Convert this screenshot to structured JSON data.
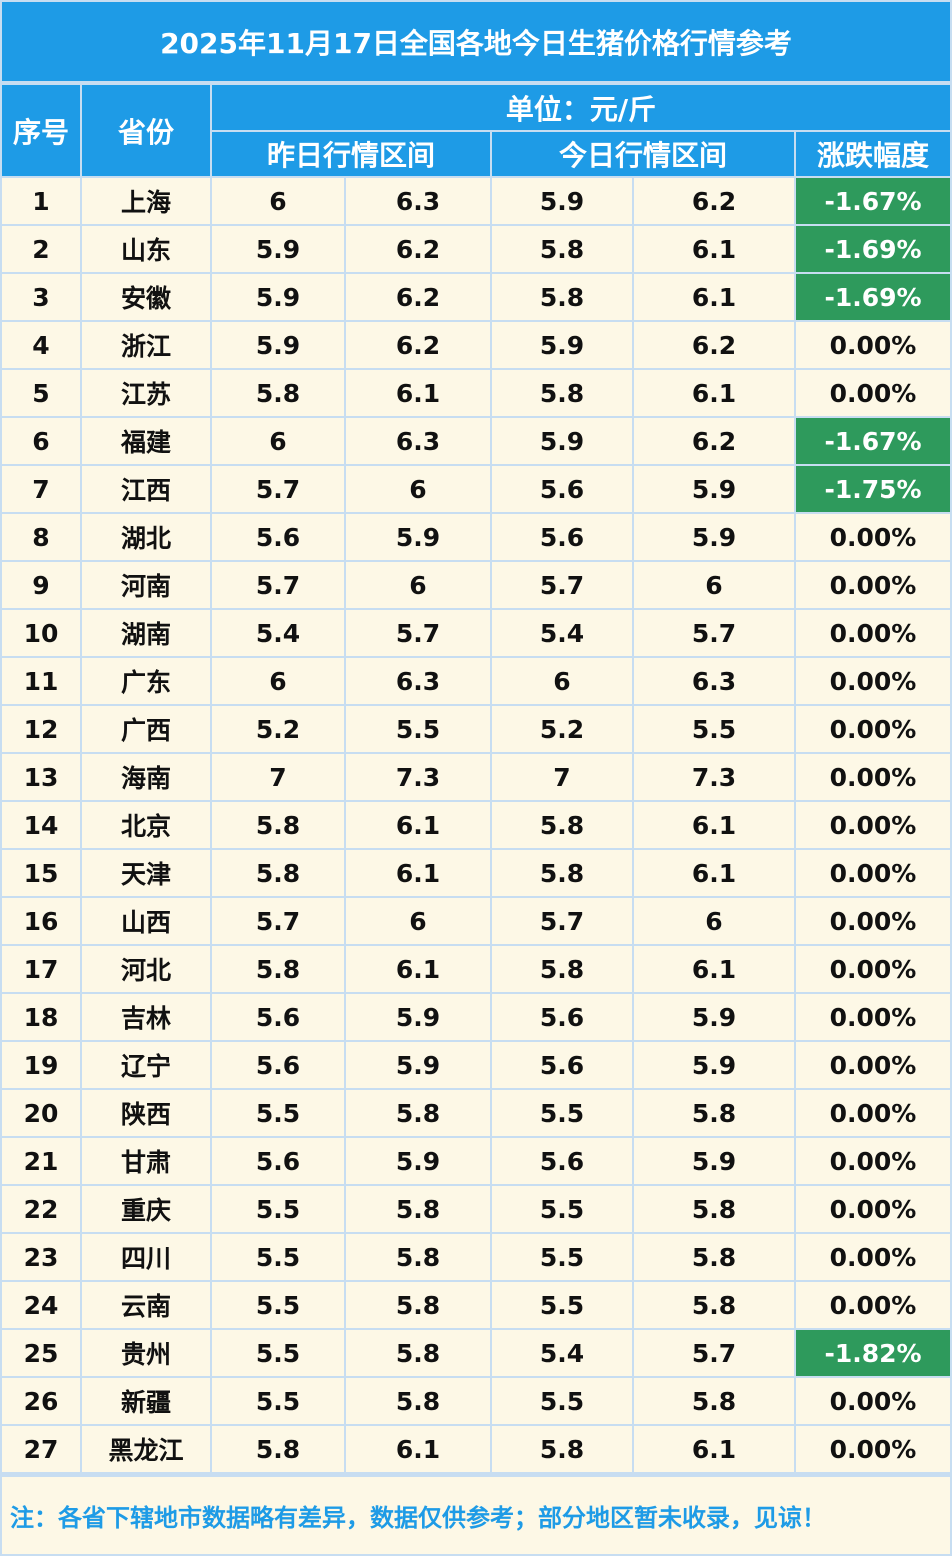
{
  "title": "2025年11月17日全国各地今日生猪价格行情参考",
  "header": {
    "seq": "序号",
    "province": "省份",
    "unit": "单位：元/斤",
    "yesterday": "昨日行情区间",
    "today": "今日行情区间",
    "change": "涨跌幅度"
  },
  "rows": [
    {
      "no": "1",
      "province": "上海",
      "y_low": "6",
      "y_high": "6.3",
      "t_low": "5.9",
      "t_high": "6.2",
      "change": "-1.67%"
    },
    {
      "no": "2",
      "province": "山东",
      "y_low": "5.9",
      "y_high": "6.2",
      "t_low": "5.8",
      "t_high": "6.1",
      "change": "-1.69%"
    },
    {
      "no": "3",
      "province": "安徽",
      "y_low": "5.9",
      "y_high": "6.2",
      "t_low": "5.8",
      "t_high": "6.1",
      "change": "-1.69%"
    },
    {
      "no": "4",
      "province": "浙江",
      "y_low": "5.9",
      "y_high": "6.2",
      "t_low": "5.9",
      "t_high": "6.2",
      "change": "0.00%"
    },
    {
      "no": "5",
      "province": "江苏",
      "y_low": "5.8",
      "y_high": "6.1",
      "t_low": "5.8",
      "t_high": "6.1",
      "change": "0.00%"
    },
    {
      "no": "6",
      "province": "福建",
      "y_low": "6",
      "y_high": "6.3",
      "t_low": "5.9",
      "t_high": "6.2",
      "change": "-1.67%"
    },
    {
      "no": "7",
      "province": "江西",
      "y_low": "5.7",
      "y_high": "6",
      "t_low": "5.6",
      "t_high": "5.9",
      "change": "-1.75%"
    },
    {
      "no": "8",
      "province": "湖北",
      "y_low": "5.6",
      "y_high": "5.9",
      "t_low": "5.6",
      "t_high": "5.9",
      "change": "0.00%"
    },
    {
      "no": "9",
      "province": "河南",
      "y_low": "5.7",
      "y_high": "6",
      "t_low": "5.7",
      "t_high": "6",
      "change": "0.00%"
    },
    {
      "no": "10",
      "province": "湖南",
      "y_low": "5.4",
      "y_high": "5.7",
      "t_low": "5.4",
      "t_high": "5.7",
      "change": "0.00%"
    },
    {
      "no": "11",
      "province": "广东",
      "y_low": "6",
      "y_high": "6.3",
      "t_low": "6",
      "t_high": "6.3",
      "change": "0.00%"
    },
    {
      "no": "12",
      "province": "广西",
      "y_low": "5.2",
      "y_high": "5.5",
      "t_low": "5.2",
      "t_high": "5.5",
      "change": "0.00%"
    },
    {
      "no": "13",
      "province": "海南",
      "y_low": "7",
      "y_high": "7.3",
      "t_low": "7",
      "t_high": "7.3",
      "change": "0.00%"
    },
    {
      "no": "14",
      "province": "北京",
      "y_low": "5.8",
      "y_high": "6.1",
      "t_low": "5.8",
      "t_high": "6.1",
      "change": "0.00%"
    },
    {
      "no": "15",
      "province": "天津",
      "y_low": "5.8",
      "y_high": "6.1",
      "t_low": "5.8",
      "t_high": "6.1",
      "change": "0.00%"
    },
    {
      "no": "16",
      "province": "山西",
      "y_low": "5.7",
      "y_high": "6",
      "t_low": "5.7",
      "t_high": "6",
      "change": "0.00%"
    },
    {
      "no": "17",
      "province": "河北",
      "y_low": "5.8",
      "y_high": "6.1",
      "t_low": "5.8",
      "t_high": "6.1",
      "change": "0.00%"
    },
    {
      "no": "18",
      "province": "吉林",
      "y_low": "5.6",
      "y_high": "5.9",
      "t_low": "5.6",
      "t_high": "5.9",
      "change": "0.00%"
    },
    {
      "no": "19",
      "province": "辽宁",
      "y_low": "5.6",
      "y_high": "5.9",
      "t_low": "5.6",
      "t_high": "5.9",
      "change": "0.00%"
    },
    {
      "no": "20",
      "province": "陕西",
      "y_low": "5.5",
      "y_high": "5.8",
      "t_low": "5.5",
      "t_high": "5.8",
      "change": "0.00%"
    },
    {
      "no": "21",
      "province": "甘肃",
      "y_low": "5.6",
      "y_high": "5.9",
      "t_low": "5.6",
      "t_high": "5.9",
      "change": "0.00%"
    },
    {
      "no": "22",
      "province": "重庆",
      "y_low": "5.5",
      "y_high": "5.8",
      "t_low": "5.5",
      "t_high": "5.8",
      "change": "0.00%"
    },
    {
      "no": "23",
      "province": "四川",
      "y_low": "5.5",
      "y_high": "5.8",
      "t_low": "5.5",
      "t_high": "5.8",
      "change": "0.00%"
    },
    {
      "no": "24",
      "province": "云南",
      "y_low": "5.5",
      "y_high": "5.8",
      "t_low": "5.5",
      "t_high": "5.8",
      "change": "0.00%"
    },
    {
      "no": "25",
      "province": "贵州",
      "y_low": "5.5",
      "y_high": "5.8",
      "t_low": "5.4",
      "t_high": "5.7",
      "change": "-1.82%"
    },
    {
      "no": "26",
      "province": "新疆",
      "y_low": "5.5",
      "y_high": "5.8",
      "t_low": "5.5",
      "t_high": "5.8",
      "change": "0.00%"
    },
    {
      "no": "27",
      "province": "黑龙江",
      "y_low": "5.8",
      "y_high": "6.1",
      "t_low": "5.8",
      "t_high": "6.1",
      "change": "0.00%"
    }
  ],
  "footer": "注：各省下辖地市数据略有差异，数据仅供参考；部分地区暂未收录，见谅！",
  "colors": {
    "header_blue": "#1e9be6",
    "cell_cream": "#fdf8e6",
    "down_green": "#2e9a5c",
    "grid_line": "#c7ddf1"
  }
}
